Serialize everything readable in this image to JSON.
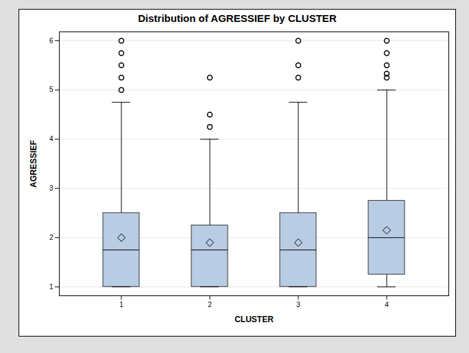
{
  "chart_data": {
    "type": "box",
    "title": "Distribution of  AGRESSIEF  by  CLUSTER",
    "x_label": "CLUSTER",
    "y_label": "AGRESSIEF",
    "categories": [
      "1",
      "2",
      "3",
      "4"
    ],
    "boxes": [
      {
        "whisker_low": 1,
        "q1": 1,
        "median": 1.75,
        "q3": 2.5,
        "whisker_high": 4.75,
        "mean": 2.0,
        "outliers": [
          5,
          5.25,
          5.5,
          5.75,
          6
        ]
      },
      {
        "whisker_low": 1,
        "q1": 1,
        "median": 1.75,
        "q3": 2.25,
        "whisker_high": 4,
        "mean": 1.9,
        "outliers": [
          4.25,
          4.5,
          5.25
        ]
      },
      {
        "whisker_low": 1,
        "q1": 1,
        "median": 1.75,
        "q3": 2.5,
        "whisker_high": 4.75,
        "mean": 1.9,
        "outliers": [
          5.25,
          5.5,
          6
        ]
      },
      {
        "whisker_low": 1,
        "q1": 1.25,
        "median": 2,
        "q3": 2.75,
        "whisker_high": 5,
        "mean": 2.15,
        "outliers": [
          5.25,
          5.33,
          5.5,
          5.75,
          6
        ]
      }
    ],
    "color": "#b8cce4",
    "ylim": [
      0.82,
      6.18
    ],
    "yticks": [
      1,
      2,
      3,
      4,
      5,
      6
    ],
    "grid": true
  }
}
